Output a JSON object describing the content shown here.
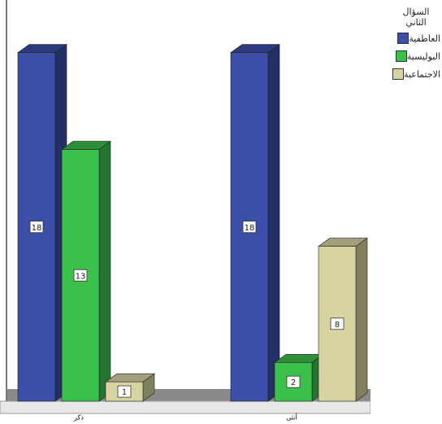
{
  "chart_data": {
    "type": "bar3d",
    "categories": [
      "ذكر",
      "أنثى"
    ],
    "legend_title": "السؤال الثاني",
    "legend": "right",
    "series": [
      {
        "name": "العاطفية",
        "color": "#3b4ea8",
        "values": [
          18,
          18
        ]
      },
      {
        "name": "البوليسية",
        "color": "#3cc04c",
        "values": [
          13,
          2
        ]
      },
      {
        "name": "الاجتماعية",
        "color": "#d8d4a2",
        "values": [
          1,
          8
        ]
      }
    ]
  }
}
